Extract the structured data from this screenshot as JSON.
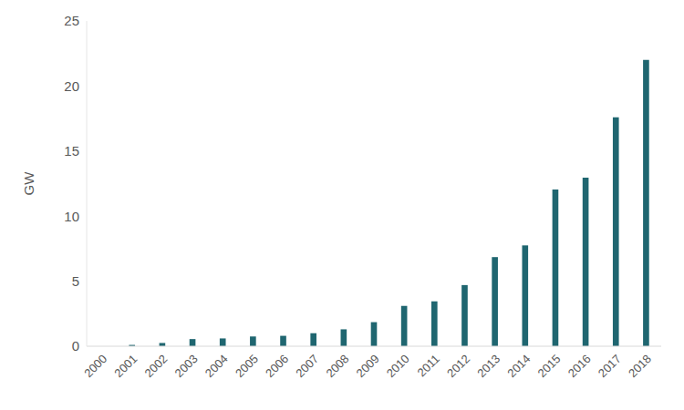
{
  "chart_data": {
    "type": "bar",
    "y_label": "GW",
    "categories": [
      "2000",
      "2001",
      "2002",
      "2003",
      "2004",
      "2005",
      "2006",
      "2007",
      "2008",
      "2009",
      "2010",
      "2011",
      "2012",
      "2013",
      "2014",
      "2015",
      "2016",
      "2017",
      "2018"
    ],
    "values": [
      0,
      0.1,
      0.25,
      0.55,
      0.6,
      0.75,
      0.8,
      1.0,
      1.3,
      1.85,
      3.1,
      3.45,
      4.7,
      6.85,
      7.75,
      12.05,
      12.95,
      17.6,
      22.0
    ],
    "color": "#1f6670",
    "ylim": [
      0,
      25
    ],
    "yticks": [
      0,
      5,
      10,
      15,
      20,
      25
    ],
    "grid": false
  }
}
